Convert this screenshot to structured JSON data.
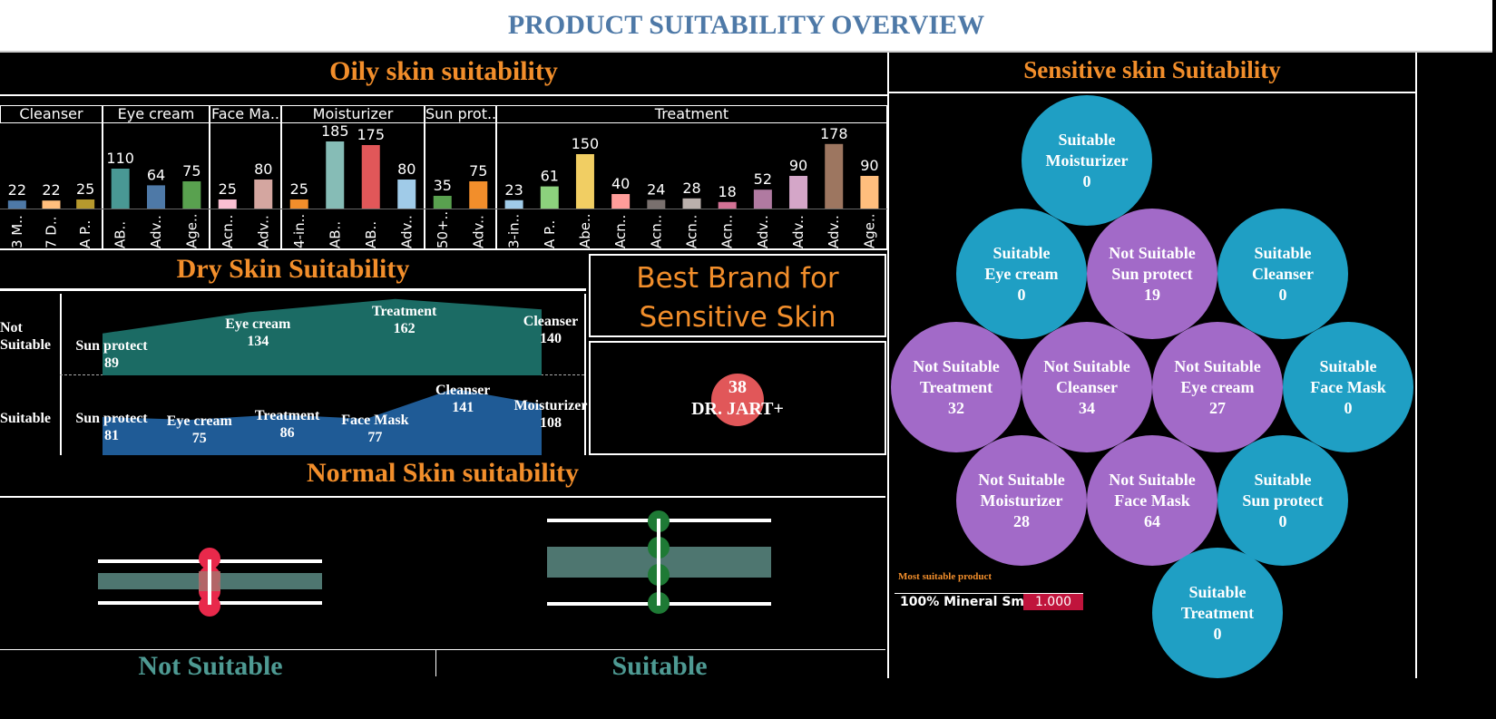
{
  "title": "PRODUCT SUITABILITY OVERVIEW",
  "oily": {
    "title": "Oily skin suitability",
    "chart_data": {
      "type": "bar",
      "title": "Oily skin suitability",
      "groups": [
        {
          "name": "Cleanser",
          "bars": [
            {
              "label": "3 M..",
              "value": 22,
              "color": "#4e79a7"
            },
            {
              "label": "7 D..",
              "value": 22,
              "color": "#ffbe7d"
            },
            {
              "label": "A P..",
              "value": 25,
              "color": "#b6992d"
            }
          ]
        },
        {
          "name": "Eye cream",
          "bars": [
            {
              "label": "AB..",
              "value": 110,
              "color": "#499894"
            },
            {
              "label": "Adv..",
              "value": 64,
              "color": "#4e79a7"
            },
            {
              "label": "Age..",
              "value": 75,
              "color": "#59a14f"
            }
          ]
        },
        {
          "name": "Face Ma..",
          "bars": [
            {
              "label": "Acn..",
              "value": 25,
              "color": "#fabfd2"
            },
            {
              "label": "Adv..",
              "value": 80,
              "color": "#d4a6a0"
            }
          ]
        },
        {
          "name": "Moisturizer",
          "bars": [
            {
              "label": "4-in..",
              "value": 25,
              "color": "#f28e2b"
            },
            {
              "label": "AB..",
              "value": 185,
              "color": "#86bcb6"
            },
            {
              "label": "AB..",
              "value": 175,
              "color": "#e15759"
            },
            {
              "label": "Adv..",
              "value": 80,
              "color": "#a0cbe8"
            }
          ]
        },
        {
          "name": "Sun prot..",
          "bars": [
            {
              "label": "50+..",
              "value": 35,
              "color": "#59a14f"
            },
            {
              "label": "Adv..",
              "value": 75,
              "color": "#f28e2b"
            }
          ]
        },
        {
          "name": "Treatment",
          "bars": [
            {
              "label": "3-in..",
              "value": 23,
              "color": "#a0cbe8"
            },
            {
              "label": "A P..",
              "value": 61,
              "color": "#8cd17d"
            },
            {
              "label": "Abe..",
              "value": 150,
              "color": "#f1ce63"
            },
            {
              "label": "Acn..",
              "value": 40,
              "color": "#ff9d9a"
            },
            {
              "label": "Acn..",
              "value": 24,
              "color": "#79706e"
            },
            {
              "label": "Acn..",
              "value": 28,
              "color": "#bab0ac"
            },
            {
              "label": "Acn..",
              "value": 18,
              "color": "#d37295"
            },
            {
              "label": "Adv..",
              "value": 52,
              "color": "#b07aa1"
            },
            {
              "label": "Adv..",
              "value": 90,
              "color": "#d4a6c8"
            },
            {
              "label": "Adv..",
              "value": 178,
              "color": "#9d7660"
            },
            {
              "label": "Age..",
              "value": 90,
              "color": "#ffbe7d"
            }
          ]
        }
      ]
    }
  },
  "dry": {
    "title": "Dry Skin Suitability",
    "chart_data": {
      "type": "area",
      "rows": [
        {
          "name": "Not Suitable",
          "color": "#1b6b64",
          "points": [
            {
              "label": "Sun protect",
              "value": 89
            },
            {
              "label": "Eye cream",
              "value": 134
            },
            {
              "label": "Treatment",
              "value": 162
            },
            {
              "label": "Cleanser",
              "value": 140
            }
          ]
        },
        {
          "name": "Suitable",
          "color": "#1f5b96",
          "points": [
            {
              "label": "Sun protect",
              "value": 81
            },
            {
              "label": "Eye cream",
              "value": 75
            },
            {
              "label": "Treatment",
              "value": 86
            },
            {
              "label": "Face Mask",
              "value": 77
            },
            {
              "label": "Cleanser",
              "value": 141
            },
            {
              "label": "Moisturizer",
              "value": 108
            }
          ]
        }
      ],
      "row_labels": [
        "Not\nSuitable",
        "Suitable"
      ]
    }
  },
  "best_brand": {
    "title": "Best Brand for Sensitive Skin",
    "value": "38",
    "brand": "DR. JART+"
  },
  "normal": {
    "title": "Normal Skin suitability",
    "labels": [
      "Not Suitable",
      "Suitable"
    ],
    "colors": {
      "not_suitable": "#e8294b",
      "suitable": "#1e7a35",
      "band": "#4e7670"
    }
  },
  "sensitive": {
    "title": "Sensitive skin Suitability",
    "bubbles": [
      {
        "status": "Suitable",
        "product": "Moisturizer",
        "value": "0"
      },
      {
        "status": "Suitable",
        "product": "Eye cream",
        "value": "0"
      },
      {
        "status": "Not Suitable",
        "product": "Sun protect",
        "value": "19"
      },
      {
        "status": "Suitable",
        "product": "Cleanser",
        "value": "0"
      },
      {
        "status": "Not Suitable",
        "product": "Treatment",
        "value": "32"
      },
      {
        "status": "Not Suitable",
        "product": "Cleanser",
        "value": "34"
      },
      {
        "status": "Not Suitable",
        "product": "Eye cream",
        "value": "27"
      },
      {
        "status": "Suitable",
        "product": "Face Mask",
        "value": "0"
      },
      {
        "status": "Not Suitable",
        "product": "Moisturizer",
        "value": "28"
      },
      {
        "status": "Not Suitable",
        "product": "Face Mask",
        "value": "64"
      },
      {
        "status": "Suitable",
        "product": "Sun protect",
        "value": "0"
      },
      {
        "status": "Suitable",
        "product": "Treatment",
        "value": "0"
      }
    ],
    "colors": {
      "suitable": "#1f9fc4",
      "not_suitable": "#a26ac8"
    },
    "most_suitable": {
      "label": "Most suitable product",
      "product": "100% Mineral Sm..",
      "value": "1.000"
    }
  }
}
